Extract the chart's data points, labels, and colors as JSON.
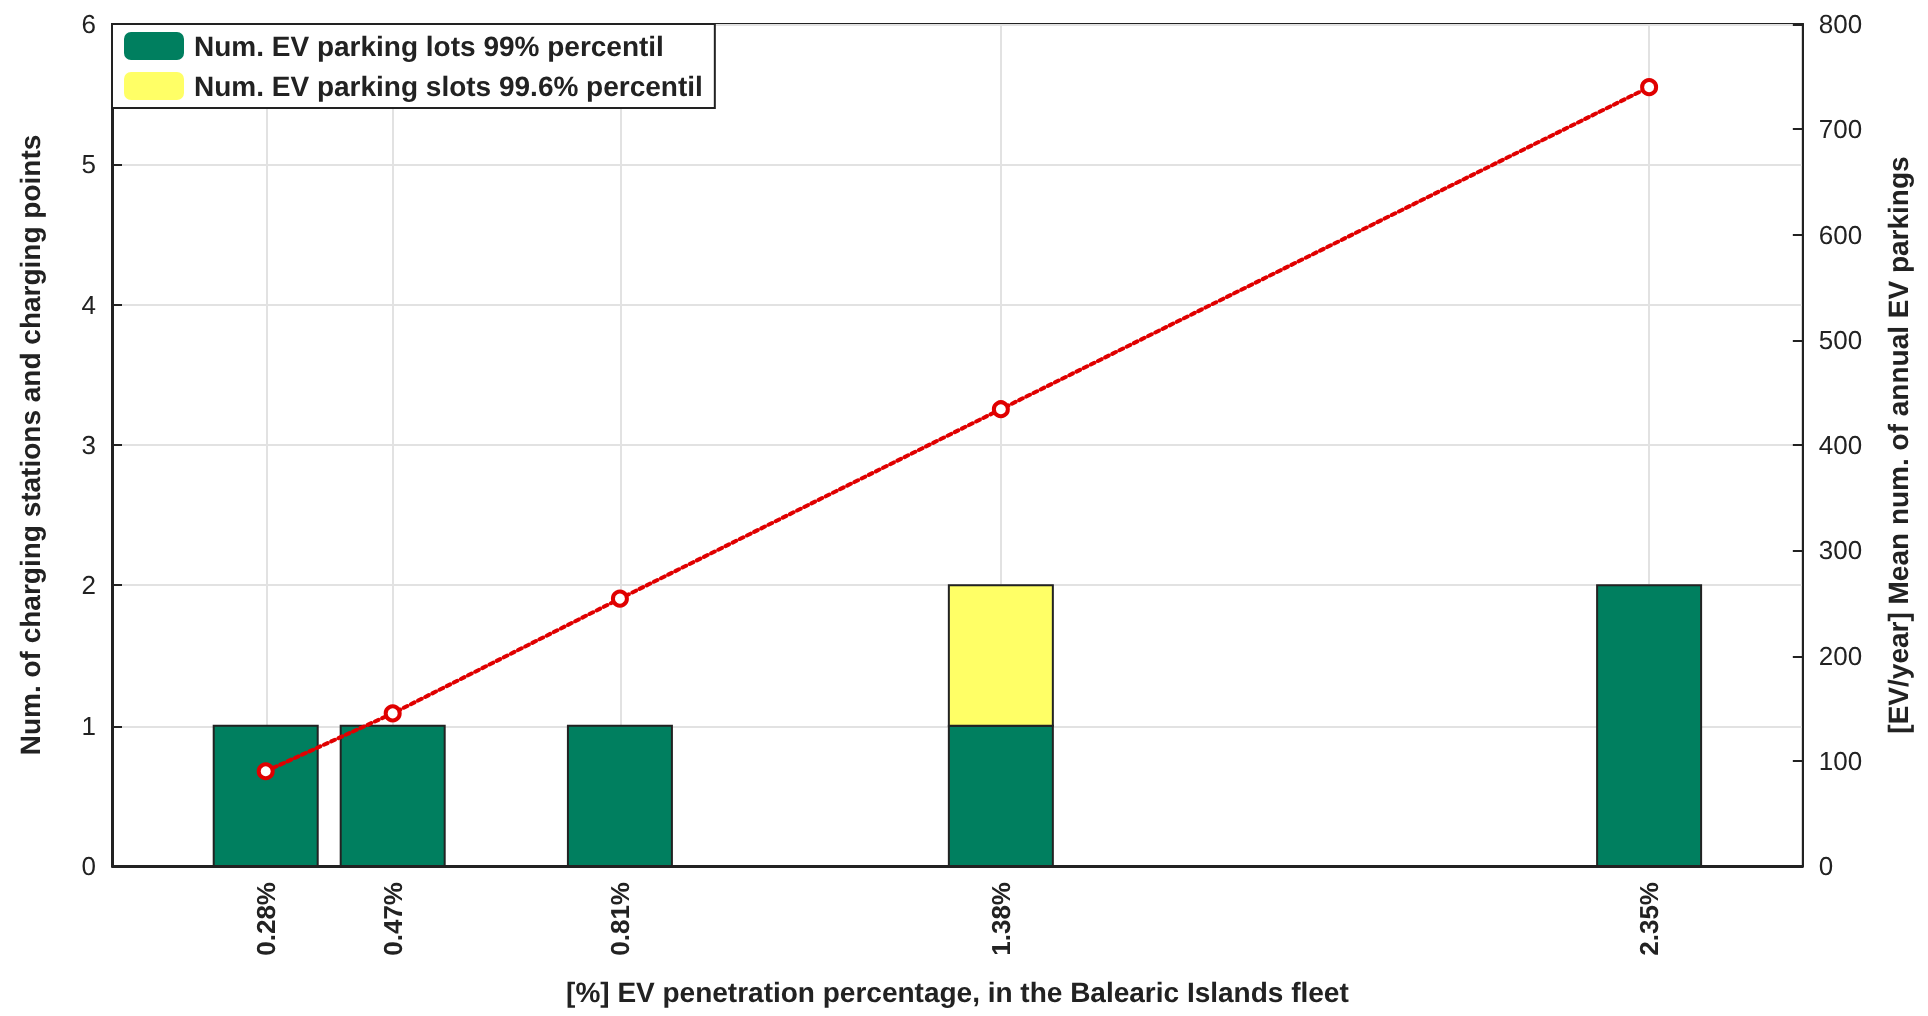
{
  "chart_data": {
    "type": "bar",
    "stacked": true,
    "x": [
      0.28,
      0.47,
      0.81,
      1.38,
      2.35
    ],
    "xlabel": "[%] EV penetration percentage, in the Balearic Islands fleet",
    "ylabel": "Num. of charging stations and charging points",
    "y2label": "[EV/year] Mean num. of annual EV parkings",
    "xlim": [
      0.05,
      2.58
    ],
    "xticks": [
      {
        "value": 0.28,
        "label": "0.28%"
      },
      {
        "value": 0.47,
        "label": "0.47%"
      },
      {
        "value": 0.81,
        "label": "0.81%"
      },
      {
        "value": 1.38,
        "label": "1.38%"
      },
      {
        "value": 2.35,
        "label": "2.35%"
      }
    ],
    "ylim": [
      0,
      6
    ],
    "yticks": [
      0,
      1,
      2,
      3,
      4,
      5,
      6
    ],
    "y2lim": [
      0,
      800
    ],
    "y2ticks": [
      0,
      100,
      200,
      300,
      400,
      500,
      600,
      700,
      800
    ],
    "series": [
      {
        "name": "Num. EV parking lots 99% percentil",
        "color": "#007f5f",
        "values": [
          1,
          1,
          1,
          1,
          2
        ]
      },
      {
        "name": "Num. EV parking slots 99.6% percentil",
        "color": "#ffff66",
        "values": [
          null,
          null,
          null,
          1,
          null
        ]
      },
      {
        "type": "line",
        "axis": "y2",
        "color": "#e00000",
        "marker": "circle",
        "line_style": "dotted",
        "values": [
          90,
          145,
          254,
          434,
          740
        ]
      }
    ],
    "grid": true,
    "legend": "top left"
  }
}
